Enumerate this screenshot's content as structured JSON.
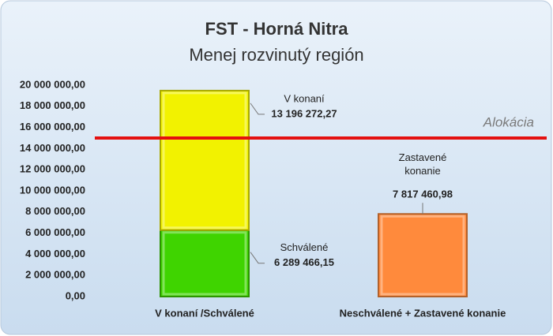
{
  "chart_data": {
    "type": "stacked_bar",
    "title": "FST - Horná Nitra",
    "subtitle": "Menej rozvinutý región",
    "categories": [
      "V konaní /Schválené",
      "Neschválené + Zastavené konanie"
    ],
    "series": [
      {
        "name": "Schválené",
        "color": "#3fd400",
        "values": [
          6289466.15,
          null
        ],
        "value_labels": [
          "6 289 466,15",
          null
        ]
      },
      {
        "name": "V konaní",
        "color": "#f2f200",
        "values": [
          13196272.27,
          null
        ],
        "value_labels": [
          "13 196 272,27",
          null
        ]
      },
      {
        "name": "Zastavené konanie",
        "color": "#ff8a3c",
        "values": [
          null,
          7817460.98
        ],
        "value_labels": [
          null,
          "7 817 460,98"
        ]
      }
    ],
    "reference_line": {
      "label": "Alokácia",
      "value": 15000000,
      "color": "#e41010"
    },
    "ylim": [
      0,
      20000000
    ],
    "yticks": [
      {
        "value": 0,
        "label": "0,00"
      },
      {
        "value": 2000000,
        "label": "2 000 000,00"
      },
      {
        "value": 4000000,
        "label": "4 000 000,00"
      },
      {
        "value": 6000000,
        "label": "6 000 000,00"
      },
      {
        "value": 8000000,
        "label": "8 000 000,00"
      },
      {
        "value": 10000000,
        "label": "10 000 000,00"
      },
      {
        "value": 12000000,
        "label": "12 000 000,00"
      },
      {
        "value": 14000000,
        "label": "14 000 000,00"
      },
      {
        "value": 16000000,
        "label": "16 000 000,00"
      },
      {
        "value": 18000000,
        "label": "18 000 000,00"
      },
      {
        "value": 20000000,
        "label": "20 000 000,00"
      }
    ],
    "grid": false
  }
}
